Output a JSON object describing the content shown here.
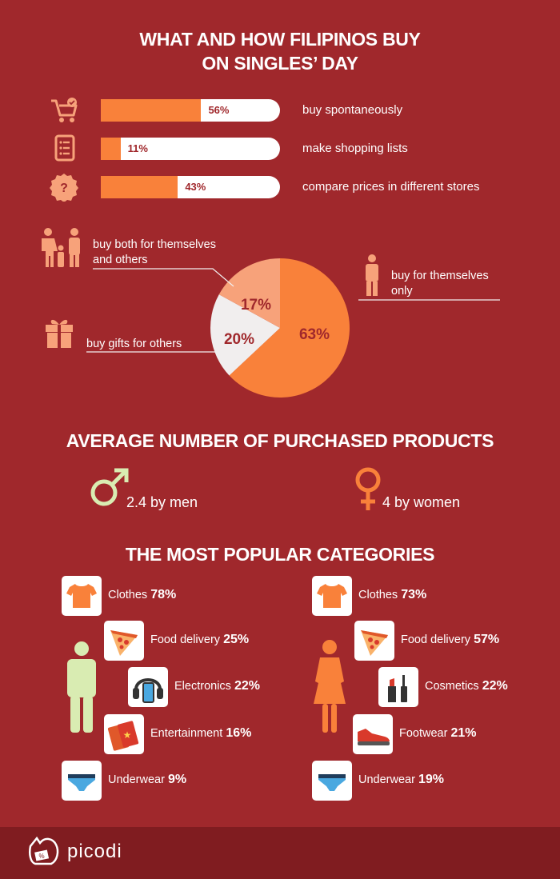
{
  "title_line1": "WHAT AND HOW FILIPINOS BUY",
  "title_line2": "ON SINGLES’ DAY",
  "chart_data": [
    {
      "type": "bar",
      "categories": [
        "buy spontaneously",
        "make shopping lists",
        "compare prices in different stores"
      ],
      "values": [
        56,
        11,
        43
      ],
      "value_labels": [
        "56%",
        "11%",
        "43%"
      ],
      "ylim": [
        0,
        100
      ],
      "icons": [
        "shopping-cart-icon",
        "list-icon",
        "question-badge-icon"
      ]
    },
    {
      "type": "pie",
      "slices": [
        {
          "label": "buy for themselves only",
          "value": 63,
          "value_label": "63%",
          "color": "#f9813a"
        },
        {
          "label": "buy gifts for others",
          "value": 20,
          "value_label": "20%",
          "color": "#f1eeee"
        },
        {
          "label": "buy both for themselves and others",
          "value": 17,
          "value_label": "17%",
          "color": "#f7a27a"
        }
      ]
    }
  ],
  "pie_labels": {
    "themselves_line1": "buy for themselves",
    "themselves_line2": "only",
    "gifts": "buy gifts for others",
    "both_line1": "buy both for themselves",
    "both_line2": "and others"
  },
  "section2": {
    "title": "AVERAGE NUMBER OF PURCHASED PRODUCTS",
    "men": "2.4 by men",
    "women": "4 by women",
    "men_color": "#d9ecb2",
    "women_color": "#f9813a"
  },
  "section3": {
    "title": "THE MOST POPULAR CATEGORIES",
    "men": [
      {
        "label": "Clothes",
        "pct": "78%",
        "icon": "tshirt-icon"
      },
      {
        "label": "Food delivery",
        "pct": "25%",
        "icon": "pizza-icon"
      },
      {
        "label": "Electronics",
        "pct": "22%",
        "icon": "headphones-phone-icon"
      },
      {
        "label": "Entertainment",
        "pct": "16%",
        "icon": "tickets-icon"
      },
      {
        "label": "Underwear",
        "pct": "9%",
        "icon": "underwear-icon"
      }
    ],
    "women": [
      {
        "label": "Clothes",
        "pct": "73%",
        "icon": "tshirt-icon"
      },
      {
        "label": "Food delivery",
        "pct": "57%",
        "icon": "pizza-icon"
      },
      {
        "label": "Cosmetics",
        "pct": "22%",
        "icon": "lipstick-mascara-icon"
      },
      {
        "label": "Footwear",
        "pct": "21%",
        "icon": "sneaker-icon"
      },
      {
        "label": "Underwear",
        "pct": "19%",
        "icon": "underwear-icon"
      }
    ]
  },
  "footer": {
    "brand": "picodi"
  },
  "colors": {
    "background": "#a0282c",
    "accent": "#f9813a",
    "footer": "#801c20",
    "light_green": "#d9ecb2"
  }
}
